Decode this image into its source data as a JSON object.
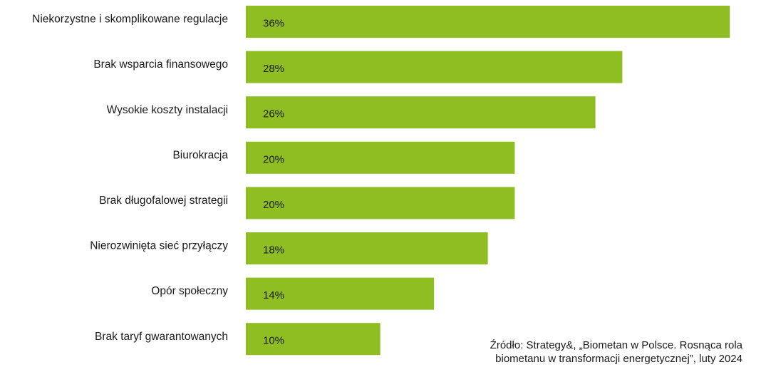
{
  "chart_data": {
    "type": "bar",
    "orientation": "horizontal",
    "categories": [
      "Niekorzystne i skomplikowane regulacje",
      "Brak wsparcia finansowego",
      "Wysokie koszty instalacji",
      "Biurokracja",
      "Brak długofalowej strategii",
      "Nierozwinięta sieć przyłączy",
      "Opór społeczny",
      "Brak taryf gwarantowanych"
    ],
    "values": [
      36,
      28,
      26,
      20,
      20,
      18,
      14,
      10
    ],
    "value_labels": [
      "36%",
      "28%",
      "26%",
      "20%",
      "20%",
      "18%",
      "14%",
      "10%"
    ],
    "unit": "%",
    "bar_color": "#8fbe22",
    "grid": false,
    "legend": false
  },
  "source_text": "Źródło: Strategy&, „Biometan w Polsce. Rosnąca rola biometanu w transformacji energetycznej”, luty 2024"
}
